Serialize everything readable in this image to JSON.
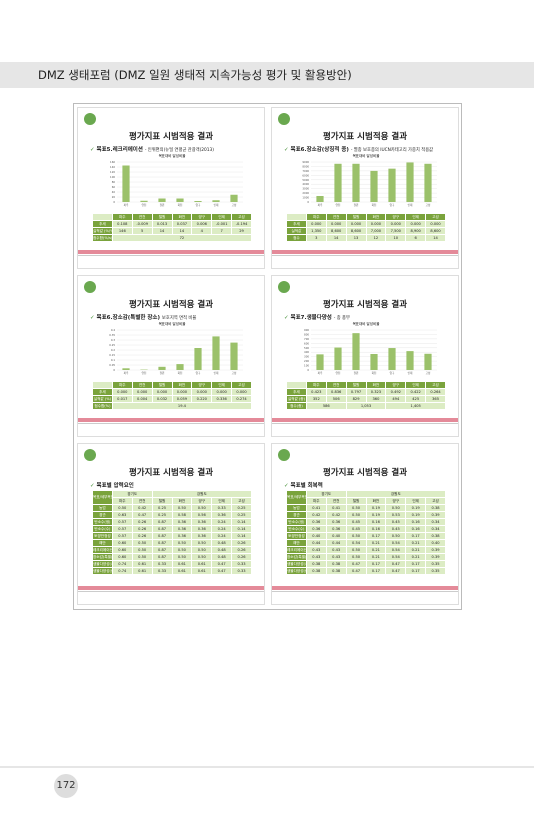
{
  "header": {
    "title": "DMZ 생태포럼 (DMZ 일원 생태적 지속가능성 평가 및 활용방안)"
  },
  "slides": [
    {
      "title": "평가지표 시범적용 결과",
      "subtitle": "목표5.레크리에이션",
      "note": "- 인위편의(뉴딜 연평균 관광객(2013)",
      "chart": {
        "title": "목표대비 달성비율",
        "categories": [
          "파주",
          "연천",
          "철원",
          "화천",
          "양구",
          "인제",
          "고성"
        ],
        "values": [
          146,
          5,
          14,
          14,
          4,
          7,
          29
        ],
        "ylim": [
          0,
          160
        ],
        "yticks": [
          0,
          20,
          40,
          60,
          80,
          100,
          120,
          140,
          160
        ]
      },
      "table": {
        "columns": [
          "파주",
          "연천",
          "철원",
          "화천",
          "양구",
          "인제",
          "고성"
        ],
        "rows": [
          {
            "label": "추세",
            "cells": [
              "0.108",
              "-0.009",
              "0.013",
              "0.037",
              "0.006",
              "-0.001",
              "-0.194"
            ]
          },
          {
            "label": "실적값 (%/%s)",
            "cells": [
              "146",
              "5",
              "14",
              "14",
              "4",
              "7",
              "29"
            ]
          },
          {
            "label": "점수합(%/s)",
            "cells": [
              "72"
            ]
          }
        ]
      }
    },
    {
      "title": "평가지표 시범적용 결과",
      "subtitle": "목표6.장소감(상징적 종)",
      "note": "- 멸종 보호종의 IUCN카테고리 가중치 적용값",
      "chart": {
        "title": "목표대비 달성비율",
        "categories": [
          "파주",
          "연천",
          "철원",
          "화천",
          "양구",
          "인제",
          "고성"
        ],
        "values": [
          1350,
          8600,
          8600,
          7000,
          7500,
          8900,
          8600
        ],
        "ylim": [
          0,
          9000
        ],
        "yticks": [
          0,
          1000,
          2000,
          3000,
          4000,
          5000,
          6000,
          7000,
          8000,
          9000
        ]
      },
      "table": {
        "columns": [
          "파주",
          "연천",
          "철원",
          "화천",
          "양구",
          "인제",
          "고성"
        ],
        "rows": [
          {
            "label": "추세",
            "cells": [
              "0.000",
              "0.000",
              "0.000",
              "0.000",
              "0.000",
              "0.000",
              "0.000"
            ]
          },
          {
            "label": "실적값",
            "cells": [
              "1,350",
              "8,600",
              "8,600",
              "7,000",
              "7,500",
              "8,900",
              "8,600"
            ]
          },
          {
            "label": "점수",
            "cells": [
              "3",
              "14",
              "13",
              "12",
              "10",
              "6",
              "14"
            ]
          }
        ]
      }
    },
    {
      "title": "평가지표 시범적용 결과",
      "subtitle": "목표6.장소감(특별한 장소)",
      "note": "보호지역 면적 비율",
      "chart": {
        "title": "목표대비 달성비율",
        "categories": [
          "파주",
          "연천",
          "철원",
          "화천",
          "양구",
          "인제",
          "고성"
        ],
        "values": [
          0.017,
          0.004,
          0.032,
          0.059,
          0.22,
          0.336,
          0.274
        ],
        "ylim": [
          0,
          0.4
        ],
        "yticks": [
          0,
          0.05,
          0.1,
          0.15,
          0.2,
          0.25,
          0.3,
          0.35,
          0.4
        ]
      },
      "table": {
        "columns": [
          "파주",
          "연천",
          "철원",
          "화천",
          "양구",
          "인제",
          "고성"
        ],
        "rows": [
          {
            "label": "추세",
            "cells": [
              "0.000",
              "0.000",
              "0.000",
              "0.000",
              "0.000",
              "0.000",
              "0.000"
            ]
          },
          {
            "label": "실적값 (%)",
            "cells": [
              "0.017",
              "0.004",
              "0.032",
              "0.059",
              "0.220",
              "0.336",
              "0.274"
            ]
          },
          {
            "label": "점수합(%)",
            "cells": [
              "19.4"
            ]
          }
        ]
      }
    },
    {
      "title": "평가지표 시범적용 결과",
      "subtitle": "목표7.생물다양성",
      "note": "- 종 풍부",
      "chart": {
        "title": "목표대비 달성비율",
        "categories": [
          "파주",
          "연천",
          "철원",
          "화천",
          "양구",
          "인제",
          "고성"
        ],
        "values": [
          352,
          506,
          829,
          360,
          494,
          425,
          365
        ],
        "ylim": [
          0,
          900
        ],
        "yticks": [
          0,
          100,
          200,
          300,
          400,
          500,
          600,
          700,
          800,
          900
        ]
      },
      "table": {
        "columns": [
          "파주",
          "연천",
          "철원",
          "화천",
          "양구",
          "인제",
          "고성"
        ],
        "rows": [
          {
            "label": "추세",
            "cells": [
              "0.423",
              "0.836",
              "0.797",
              "0.323",
              "0.492",
              "0.422",
              "0.264"
            ]
          },
          {
            "label": "실적값 (종)",
            "cells": [
              "352",
              "506",
              "829",
              "360",
              "494",
              "425",
              "365"
            ]
          },
          {
            "label": "점수(종)",
            "cells": [
              "586",
              "1,053",
              "1,405"
            ]
          }
        ]
      }
    },
    {
      "title": "평가지표 시범적용 결과",
      "subtitle": "목표별 압력요인",
      "table": {
        "corner": "목표/세부목표",
        "groups": [
          "경기도",
          "강원도"
        ],
        "columns": [
          "파주",
          "연천",
          "철원",
          "화천",
          "양구",
          "인제",
          "고성"
        ],
        "rows": [
          {
            "label": "농업",
            "cells": [
              "0.50",
              "0.42",
              "0.25",
              "0.50",
              "0.50",
              "0.33",
              "0.25"
            ]
          },
          {
            "label": "경관",
            "cells": [
              "0.63",
              "0.47",
              "0.25",
              "0.58",
              "0.56",
              "0.36",
              "0.25"
            ]
          },
          {
            "label": "탄소수(생)",
            "cells": [
              "0.57",
              "0.26",
              "0.87",
              "0.36",
              "0.36",
              "0.24",
              "0.14"
            ]
          },
          {
            "label": "탄소수(수)",
            "cells": [
              "0.57",
              "0.26",
              "0.87",
              "0.36",
              "0.36",
              "0.24",
              "0.14"
            ]
          },
          {
            "label": "토양안정성",
            "cells": [
              "0.57",
              "0.26",
              "0.87",
              "0.36",
              "0.36",
              "0.24",
              "0.14"
            ]
          },
          {
            "label": "해안",
            "cells": [
              "0.60",
              "0.50",
              "0.87",
              "0.50",
              "0.50",
              "0.48",
              "0.26"
            ]
          },
          {
            "label": "레크리에이션",
            "cells": [
              "0.60",
              "0.50",
              "0.87",
              "0.50",
              "0.50",
              "0.48",
              "0.26"
            ]
          },
          {
            "label": "장소감(특별)",
            "cells": [
              "0.60",
              "0.50",
              "0.87",
              "0.50",
              "0.50",
              "0.48",
              "0.26"
            ]
          },
          {
            "label": "생물다양성(서식)",
            "cells": [
              "0.74",
              "0.61",
              "0.33",
              "0.61",
              "0.61",
              "0.47",
              "0.33"
            ]
          },
          {
            "label": "생물다양성(종)",
            "cells": [
              "0.74",
              "0.61",
              "0.33",
              "0.61",
              "0.61",
              "0.47",
              "0.33"
            ]
          }
        ]
      }
    },
    {
      "title": "평가지표 시범적용 결과",
      "subtitle": "목표별 회복력",
      "table": {
        "corner": "목표/세부목표",
        "groups": [
          "경기도",
          "강원도"
        ],
        "columns": [
          "파주",
          "연천",
          "철원",
          "화천",
          "양구",
          "인제",
          "고성"
        ],
        "rows": [
          {
            "label": "농업",
            "cells": [
              "0.41",
              "0.41",
              "0.50",
              "0.19",
              "0.50",
              "0.19",
              "0.38"
            ]
          },
          {
            "label": "경관",
            "cells": [
              "0.42",
              "0.42",
              "0.50",
              "0.19",
              "0.53",
              "0.19",
              "0.39"
            ]
          },
          {
            "label": "탄소수(생)",
            "cells": [
              "0.36",
              "0.36",
              "0.45",
              "0.16",
              "0.45",
              "0.16",
              "0.34"
            ]
          },
          {
            "label": "탄소수(수)",
            "cells": [
              "0.36",
              "0.36",
              "0.45",
              "0.16",
              "0.45",
              "0.16",
              "0.34"
            ]
          },
          {
            "label": "토양안정성",
            "cells": [
              "0.40",
              "0.40",
              "0.50",
              "0.17",
              "0.50",
              "0.17",
              "0.38"
            ]
          },
          {
            "label": "해안",
            "cells": [
              "0.44",
              "0.44",
              "0.54",
              "0.21",
              "0.54",
              "0.21",
              "0.40"
            ]
          },
          {
            "label": "레크리에이션",
            "cells": [
              "0.43",
              "0.43",
              "0.50",
              "0.21",
              "0.54",
              "0.21",
              "0.39"
            ]
          },
          {
            "label": "장소감(특별)",
            "cells": [
              "0.43",
              "0.43",
              "0.50",
              "0.21",
              "0.54",
              "0.21",
              "0.39"
            ]
          },
          {
            "label": "생물다양성(서식)",
            "cells": [
              "0.38",
              "0.38",
              "0.47",
              "0.17",
              "0.47",
              "0.17",
              "0.35"
            ]
          },
          {
            "label": "생물다양성(종)",
            "cells": [
              "0.38",
              "0.38",
              "0.47",
              "0.17",
              "0.47",
              "0.17",
              "0.35"
            ]
          }
        ]
      }
    }
  ],
  "page_number": "172"
}
